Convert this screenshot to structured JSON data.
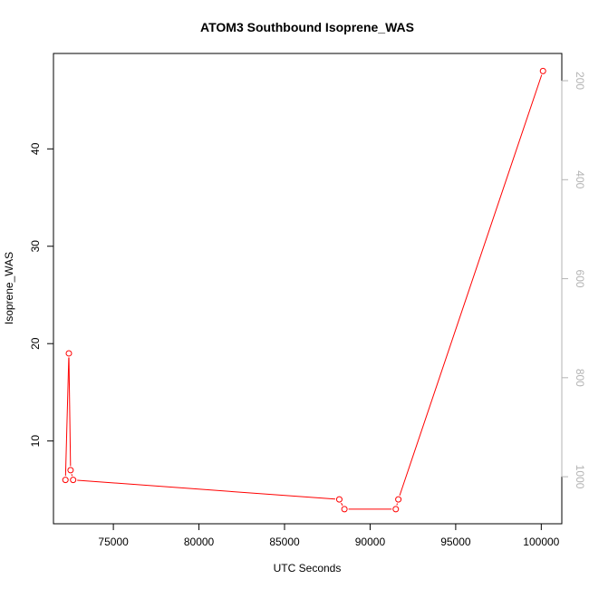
{
  "chart_data": {
    "type": "line",
    "title": "ATOM3 Southbound Isoprene_WAS",
    "xlabel": "UTC Seconds",
    "ylabel": "Isoprene_WAS",
    "xlim": [
      71500,
      101200
    ],
    "ylim": [
      1.5,
      49.8
    ],
    "x_ticks": [
      75000,
      80000,
      85000,
      90000,
      95000,
      100000
    ],
    "x_tick_labels": [
      "75000",
      "80000",
      "85000",
      "90000",
      "95000",
      "100000"
    ],
    "y_ticks": [
      10,
      20,
      30,
      40
    ],
    "y_tick_labels": [
      "10",
      "20",
      "30",
      "40"
    ],
    "y2_lim": [
      1095,
      145
    ],
    "y2_ticks": [
      200,
      400,
      600,
      800,
      1000
    ],
    "y2_tick_labels": [
      "200",
      "400",
      "600",
      "800",
      "1000"
    ],
    "grid": false,
    "colors": {
      "series": "#ff0000",
      "axis": "#000000",
      "secondary_axis": "#b3b3b3"
    },
    "series": [
      {
        "x": [
          72200,
          72400,
          72500,
          72650,
          88200,
          88500,
          91500,
          91650,
          100100
        ],
        "y": [
          6,
          19,
          7,
          6,
          4,
          3,
          3,
          4,
          48
        ]
      }
    ]
  }
}
